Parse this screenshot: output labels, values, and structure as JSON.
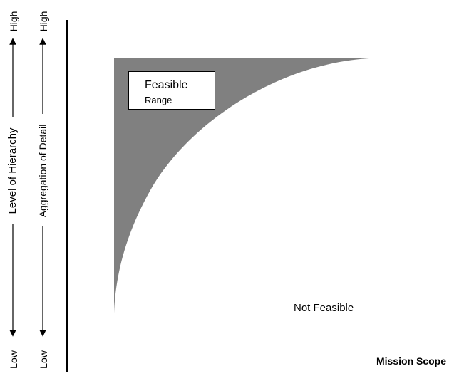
{
  "diagram": {
    "feasible_label_line1": "Feasible",
    "feasible_label_line2": "Range",
    "not_feasible_label": "Not Feasible",
    "x_axis_label": "Mission Scope",
    "axis1": {
      "label": "Level of Hierarchy",
      "high": "High",
      "low": "Low"
    },
    "axis2": {
      "label": "Aggregation of Detail",
      "high": "High",
      "low": "Low"
    },
    "colors": {
      "feasible_fill": "#808080",
      "line": "#000000",
      "background": "#ffffff"
    }
  }
}
